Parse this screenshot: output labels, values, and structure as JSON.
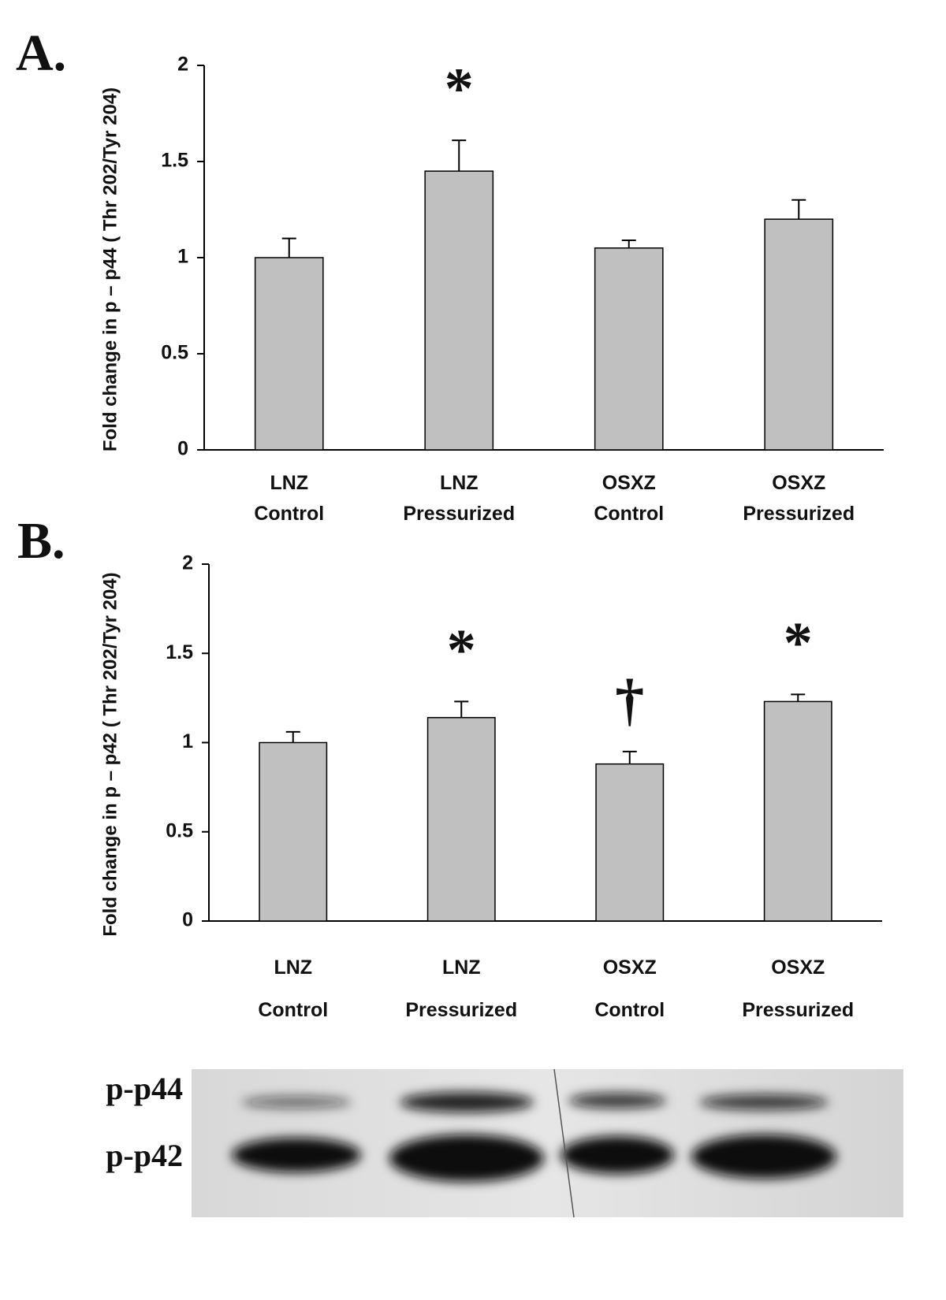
{
  "chart_data": [
    {
      "type": "bar",
      "panel": "A.",
      "y_label": "Fold change in p – p44 ( Thr 202/Tyr 204)",
      "categories": [
        "LNZ\nControl",
        "LNZ\nPressurized",
        "OSXZ\nControl",
        "OSXZ\nPressurized"
      ],
      "values": [
        1.0,
        1.45,
        1.05,
        1.2
      ],
      "errors": [
        0.1,
        0.16,
        0.04,
        0.1
      ],
      "significance": [
        null,
        "*",
        null,
        null
      ],
      "color": "#c0c0c0",
      "ylim": [
        0,
        2
      ],
      "yticks": [
        0,
        0.5,
        1,
        1.5,
        2
      ],
      "grid": false
    },
    {
      "type": "bar",
      "panel": "B.",
      "y_label": "Fold change in p – p42 ( Thr 202/Tyr 204)",
      "categories": [
        "LNZ\nControl",
        "LNZ\nPressurized",
        "OSXZ\nControl",
        "OSXZ\nPressurized"
      ],
      "values": [
        1.0,
        1.14,
        0.88,
        1.23
      ],
      "errors": [
        0.06,
        0.09,
        0.07,
        0.04
      ],
      "significance": [
        null,
        "*",
        "†",
        "*"
      ],
      "color": "#c0c0c0",
      "ylim": [
        0,
        2
      ],
      "yticks": [
        0,
        0.5,
        1,
        1.5,
        2
      ],
      "grid": false
    }
  ],
  "blot": {
    "labels": [
      "p-p44",
      "p-p42"
    ]
  }
}
